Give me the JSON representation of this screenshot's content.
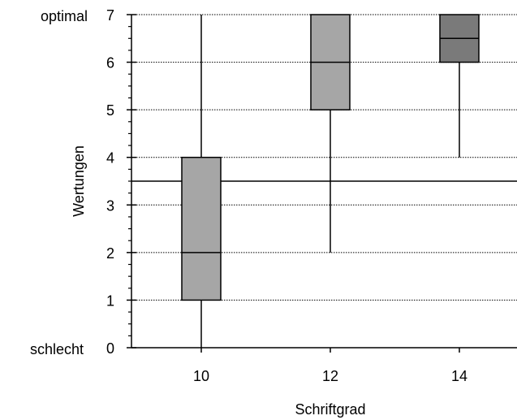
{
  "chart_data": {
    "type": "boxplot",
    "xlabel": "Schriftgrad",
    "ylabel": "Wertungen",
    "ylim": [
      0,
      7
    ],
    "yticks": [
      0,
      1,
      2,
      3,
      4,
      5,
      6,
      7
    ],
    "y_extreme_labels": {
      "low": "schlecht",
      "high": "optimal"
    },
    "categories": [
      "10",
      "12",
      "14"
    ],
    "boxes": [
      {
        "category": "10",
        "whisker_low": 0,
        "q1": 1,
        "median": 2,
        "q3": 4,
        "whisker_high": 7,
        "color": "#a6a6a6"
      },
      {
        "category": "12",
        "whisker_low": 2,
        "q1": 5,
        "median": 6,
        "q3": 7,
        "whisker_high": 7,
        "color": "#a6a6a6"
      },
      {
        "category": "14",
        "whisker_low": 4,
        "q1": 6,
        "median": 6.5,
        "q3": 7,
        "whisker_high": 7,
        "color": "#7a7a7a"
      }
    ],
    "reference_line": 3.5,
    "grid": true,
    "grid_style": "dotted"
  }
}
